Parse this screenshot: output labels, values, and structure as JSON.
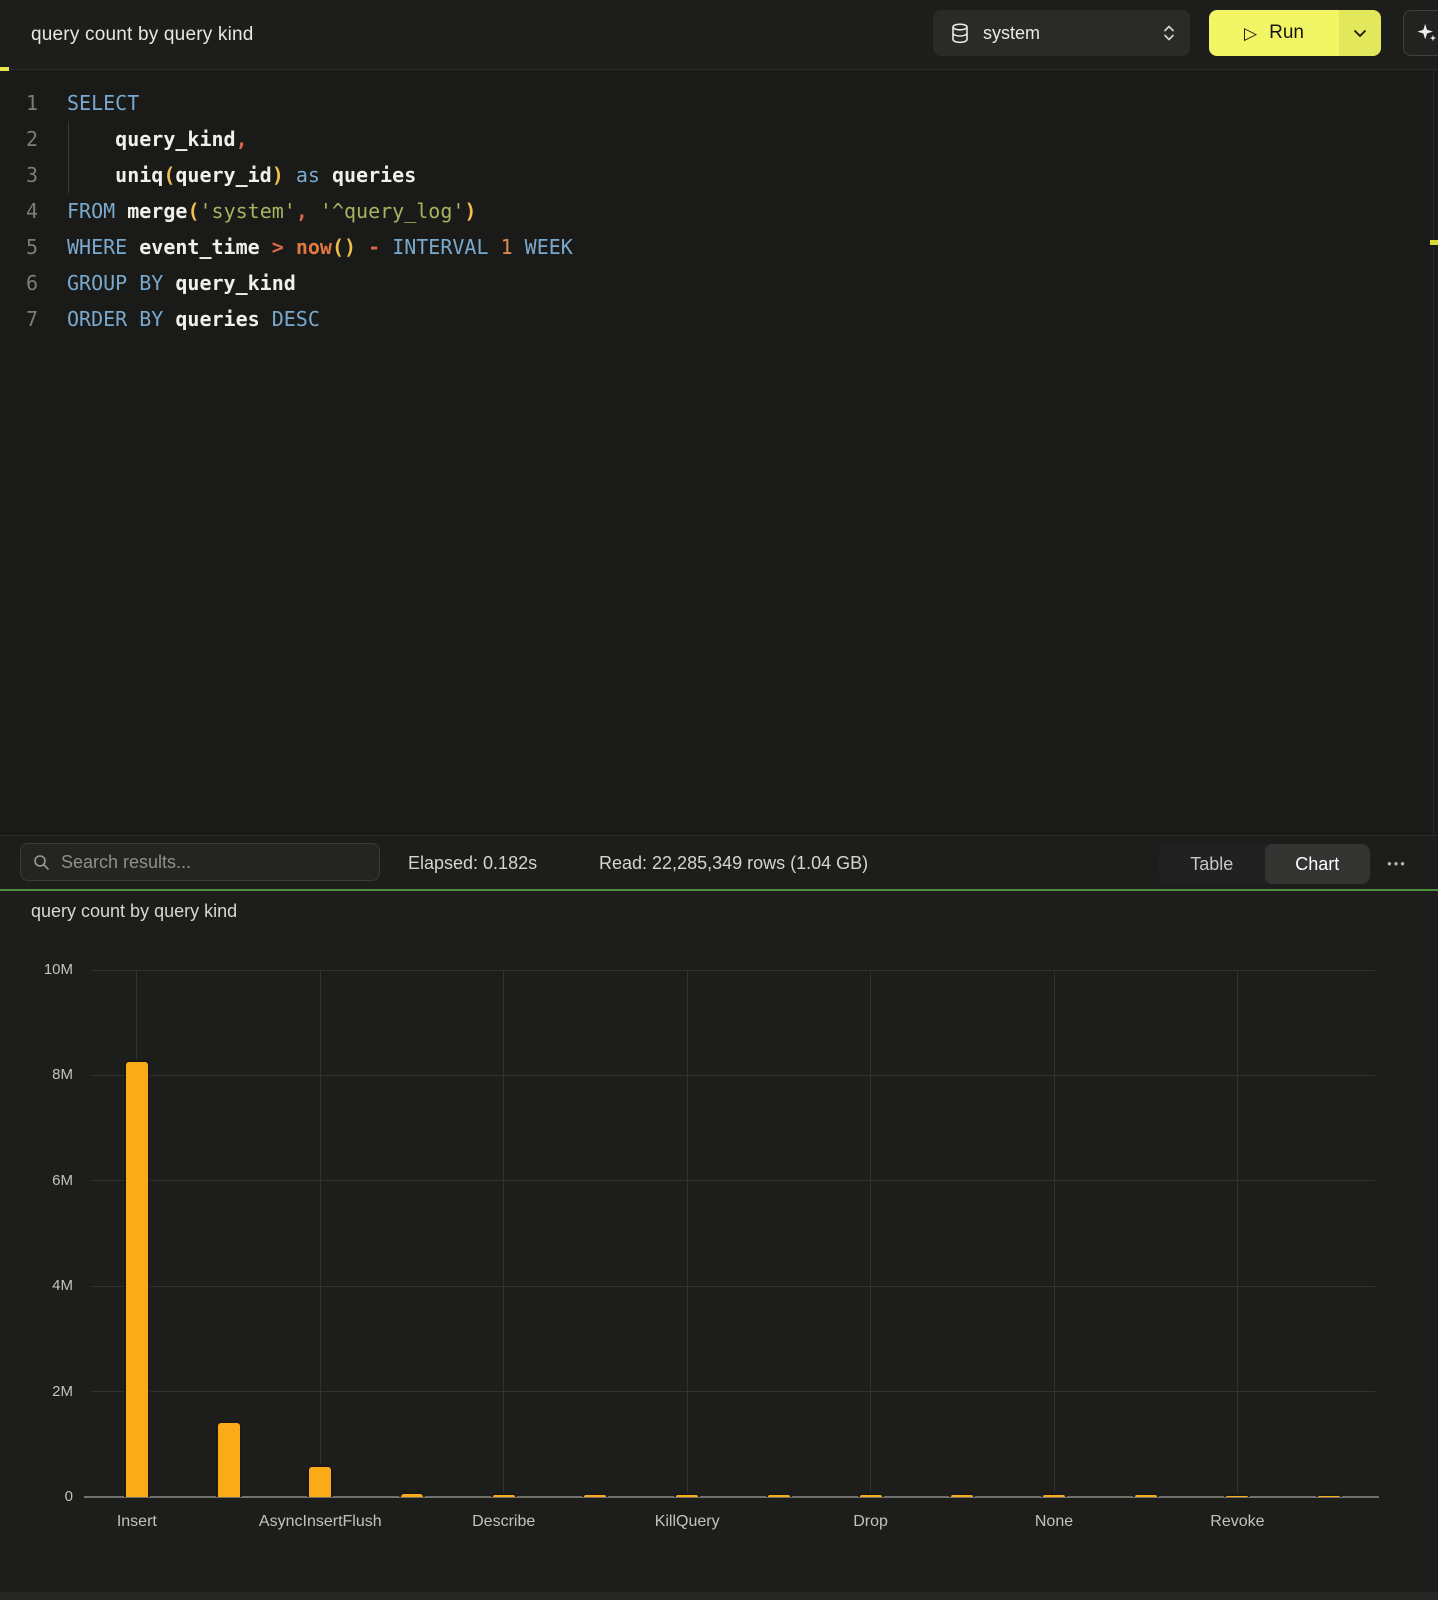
{
  "topbar": {
    "title": "query count by query kind",
    "database": "system",
    "run_label": "Run"
  },
  "editor": {
    "lines": [
      {
        "n": "1",
        "tokens": [
          {
            "c": "kw",
            "t": "SELECT"
          }
        ]
      },
      {
        "n": "2",
        "tokens": [
          {
            "c": "pl",
            "t": "    "
          },
          {
            "c": "id",
            "t": "query_kind"
          },
          {
            "c": "op",
            "t": ","
          }
        ]
      },
      {
        "n": "3",
        "tokens": [
          {
            "c": "pl",
            "t": "    "
          },
          {
            "c": "id",
            "t": "uniq"
          },
          {
            "c": "par",
            "t": "("
          },
          {
            "c": "id",
            "t": "query_id"
          },
          {
            "c": "par",
            "t": ")"
          },
          {
            "c": "pl",
            "t": " "
          },
          {
            "c": "kw",
            "t": "as"
          },
          {
            "c": "pl",
            "t": " "
          },
          {
            "c": "id",
            "t": "queries"
          }
        ]
      },
      {
        "n": "4",
        "tokens": [
          {
            "c": "kw",
            "t": "FROM"
          },
          {
            "c": "pl",
            "t": " "
          },
          {
            "c": "id",
            "t": "merge"
          },
          {
            "c": "par",
            "t": "("
          },
          {
            "c": "str",
            "t": "'system'"
          },
          {
            "c": "op",
            "t": ","
          },
          {
            "c": "pl",
            "t": " "
          },
          {
            "c": "str",
            "t": "'^query_log'"
          },
          {
            "c": "par",
            "t": ")"
          }
        ]
      },
      {
        "n": "5",
        "tokens": [
          {
            "c": "kw",
            "t": "WHERE"
          },
          {
            "c": "pl",
            "t": " "
          },
          {
            "c": "id",
            "t": "event_time"
          },
          {
            "c": "pl",
            "t": " "
          },
          {
            "c": "op",
            "t": ">"
          },
          {
            "c": "pl",
            "t": " "
          },
          {
            "c": "fn",
            "t": "now"
          },
          {
            "c": "par",
            "t": "()"
          },
          {
            "c": "pl",
            "t": " "
          },
          {
            "c": "op",
            "t": "-"
          },
          {
            "c": "pl",
            "t": " "
          },
          {
            "c": "kw",
            "t": "INTERVAL"
          },
          {
            "c": "pl",
            "t": " "
          },
          {
            "c": "num",
            "t": "1"
          },
          {
            "c": "pl",
            "t": " "
          },
          {
            "c": "kw",
            "t": "WEEK"
          }
        ]
      },
      {
        "n": "6",
        "tokens": [
          {
            "c": "kw",
            "t": "GROUP BY"
          },
          {
            "c": "pl",
            "t": " "
          },
          {
            "c": "id",
            "t": "query_kind"
          }
        ]
      },
      {
        "n": "7",
        "tokens": [
          {
            "c": "kw",
            "t": "ORDER BY"
          },
          {
            "c": "pl",
            "t": " "
          },
          {
            "c": "id",
            "t": "queries"
          },
          {
            "c": "pl",
            "t": " "
          },
          {
            "c": "kw",
            "t": "DESC"
          }
        ]
      }
    ]
  },
  "results_bar": {
    "search_placeholder": "Search results...",
    "elapsed": "Elapsed: 0.182s",
    "read": "Read: 22,285,349 rows (1.04 GB)",
    "views": [
      "Table",
      "Chart"
    ],
    "active_view": "Chart",
    "more_label": "•••"
  },
  "chart": {
    "title": "query count by query kind"
  },
  "chart_data": {
    "type": "bar",
    "title": "query count by query kind",
    "categories": [
      "Insert",
      "",
      "AsyncInsertFlush",
      "",
      "Describe",
      "",
      "KillQuery",
      "",
      "Drop",
      "",
      "None",
      "",
      "Revoke",
      ""
    ],
    "values": [
      8300000,
      1450000,
      610000,
      90000,
      85000,
      80000,
      78000,
      76000,
      74000,
      72000,
      70000,
      68000,
      66000,
      64000
    ],
    "xlabel": "",
    "ylabel": "",
    "ylim": [
      0,
      10000000
    ],
    "y_ticks": [
      "0",
      "2M",
      "4M",
      "6M",
      "8M",
      "10M"
    ],
    "grid": true,
    "legend": false,
    "bar_color": "#FBAB18"
  },
  "colors": {
    "accent_green": "#4C8F3F",
    "run_yellow": "#F2F664",
    "bar_amber": "#FBAB18",
    "keyword_blue": "#79A9CE",
    "string_olive": "#A6B45F"
  }
}
